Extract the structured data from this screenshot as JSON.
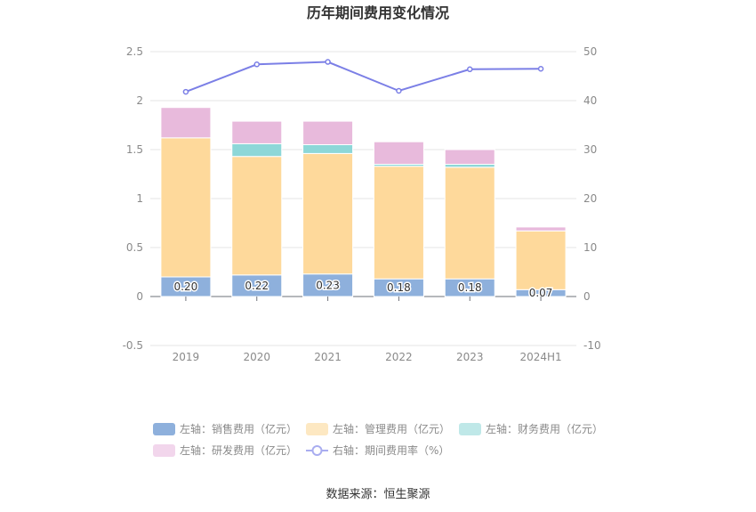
{
  "chart_data": {
    "type": "bar",
    "title": "历年期间费用变化情况",
    "categories": [
      "2019",
      "2020",
      "2021",
      "2022",
      "2023",
      "2024H1"
    ],
    "left_axis": {
      "ylim": [
        -0.5,
        2.5
      ],
      "ticks": [
        "-0.5",
        "0",
        "0.5",
        "1",
        "1.5",
        "2",
        "2.5"
      ]
    },
    "right_axis": {
      "ylim": [
        -10,
        50
      ],
      "ticks": [
        "-10",
        "0",
        "10",
        "20",
        "30",
        "40",
        "50"
      ]
    },
    "series": [
      {
        "name": "左轴：销售费用（亿元）",
        "type": "bar",
        "axis": "left",
        "color": "#8eb0dc",
        "values": [
          0.2,
          0.22,
          0.23,
          0.18,
          0.18,
          0.07
        ],
        "labels": [
          "0.20",
          "0.22",
          "0.23",
          "0.18",
          "0.18",
          "0.07"
        ]
      },
      {
        "name": "左轴：管理费用（亿元）",
        "type": "bar",
        "axis": "left",
        "color": "#fed99b",
        "values": [
          1.42,
          1.21,
          1.23,
          1.15,
          1.14,
          0.6
        ]
      },
      {
        "name": "左轴：财务费用（亿元）",
        "type": "bar",
        "axis": "left",
        "color": "#8dd7d8",
        "values": [
          0.0,
          0.13,
          0.09,
          0.02,
          0.03,
          0.0
        ]
      },
      {
        "name": "左轴：研发费用（亿元）",
        "type": "bar",
        "axis": "left",
        "color": "#e8badc",
        "values": [
          0.31,
          0.23,
          0.24,
          0.23,
          0.15,
          0.04
        ]
      },
      {
        "name": "右轴：期间费用率（%）",
        "type": "line",
        "axis": "right",
        "color": "#7b7fe6",
        "values": [
          41.8,
          47.4,
          47.9,
          42.0,
          46.4,
          46.5
        ]
      }
    ],
    "legend": "bottom",
    "grid": true
  },
  "source": "数据来源：恒生聚源"
}
